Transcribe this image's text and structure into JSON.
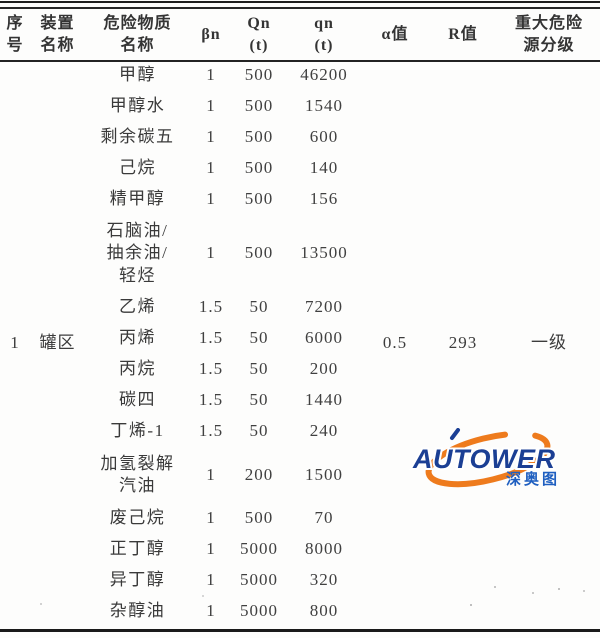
{
  "table": {
    "headers": [
      "序\n号",
      "装置\n名称",
      "危险物质\n名称",
      "βn",
      "Qn\n(t)",
      "qn\n(t)",
      "α值",
      "R值",
      "重大危险\n源分级"
    ],
    "group": {
      "serial": "1",
      "device": "罐区",
      "alpha": "0.5",
      "R": "293",
      "grade": "一级"
    },
    "rows": [
      {
        "name": "甲醇",
        "bn": "1",
        "Qn": "500",
        "qn": "46200"
      },
      {
        "name": "甲醇水",
        "bn": "1",
        "Qn": "500",
        "qn": "1540"
      },
      {
        "name": "剩余碳五",
        "bn": "1",
        "Qn": "500",
        "qn": "600"
      },
      {
        "name": "己烷",
        "bn": "1",
        "Qn": "500",
        "qn": "140"
      },
      {
        "name": "精甲醇",
        "bn": "1",
        "Qn": "500",
        "qn": "156"
      },
      {
        "name": "石脑油/\n抽余油/\n轻烃",
        "bn": "1",
        "Qn": "500",
        "qn": "13500",
        "lines": 3
      },
      {
        "name": "乙烯",
        "bn": "1.5",
        "Qn": "50",
        "qn": "7200"
      },
      {
        "name": "丙烯",
        "bn": "1.5",
        "Qn": "50",
        "qn": "6000"
      },
      {
        "name": "丙烷",
        "bn": "1.5",
        "Qn": "50",
        "qn": "200"
      },
      {
        "name": "碳四",
        "bn": "1.5",
        "Qn": "50",
        "qn": "1440"
      },
      {
        "name": "丁烯-1",
        "bn": "1.5",
        "Qn": "50",
        "qn": "240"
      },
      {
        "name": "加氢裂解\n汽油",
        "bn": "1",
        "Qn": "200",
        "qn": "1500",
        "lines": 2
      },
      {
        "name": "废己烷",
        "bn": "1",
        "Qn": "500",
        "qn": "70"
      },
      {
        "name": "正丁醇",
        "bn": "1",
        "Qn": "5000",
        "qn": "8000"
      },
      {
        "name": "异丁醇",
        "bn": "1",
        "Qn": "5000",
        "qn": "320"
      },
      {
        "name": "杂醇油",
        "bn": "1",
        "Qn": "5000",
        "qn": "800"
      }
    ]
  },
  "logo": {
    "brand": "AUTOWER",
    "cn": "深奥图",
    "orange": "#ee7b1d",
    "brand_blue": "#1b3f94",
    "cn_blue": "#1f5fc0"
  }
}
